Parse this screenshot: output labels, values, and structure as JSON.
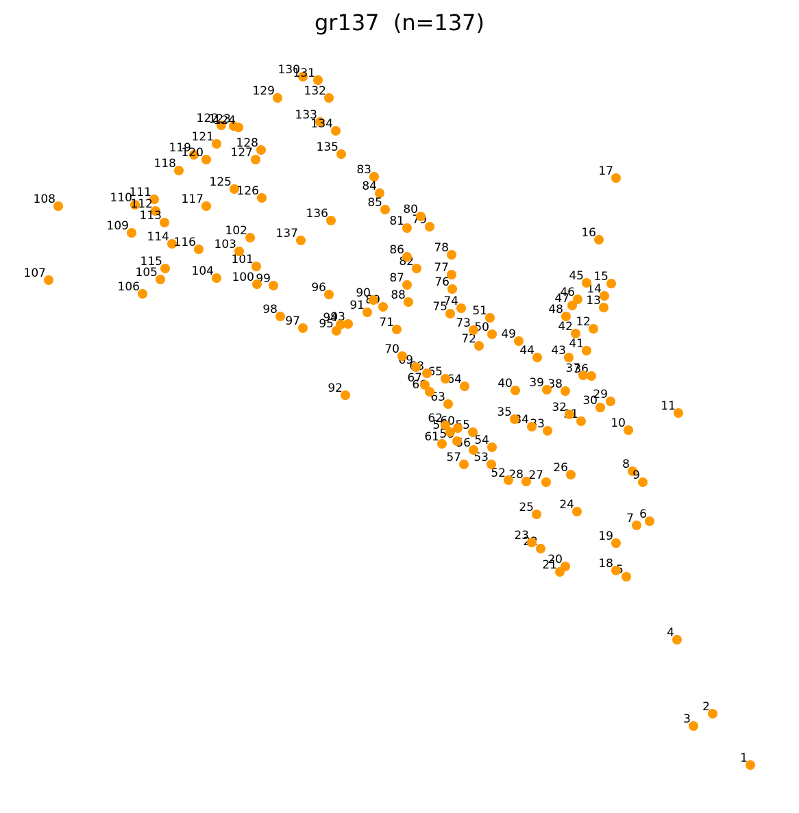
{
  "title": "gr137  (n=137)",
  "chart_data": {
    "type": "scatter",
    "title": "gr137  (n=137)",
    "xlabel": "",
    "ylabel": "",
    "grid": false,
    "axes_visible": false,
    "xlim": [
      0,
      1166
    ],
    "ylim": [
      0,
      1187
    ],
    "y_inverted": true,
    "point_color": "#ff9900",
    "points": [
      {
        "id": "1",
        "x": 1095,
        "y": 1117
      },
      {
        "id": "2",
        "x": 1040,
        "y": 1042
      },
      {
        "id": "3",
        "x": 1012,
        "y": 1060
      },
      {
        "id": "4",
        "x": 988,
        "y": 934
      },
      {
        "id": "5",
        "x": 914,
        "y": 842
      },
      {
        "id": "6",
        "x": 948,
        "y": 761
      },
      {
        "id": "7",
        "x": 929,
        "y": 767
      },
      {
        "id": "8",
        "x": 923,
        "y": 688
      },
      {
        "id": "9",
        "x": 938,
        "y": 704
      },
      {
        "id": "10",
        "x": 917,
        "y": 628
      },
      {
        "id": "11",
        "x": 990,
        "y": 603
      },
      {
        "id": "12",
        "x": 866,
        "y": 480
      },
      {
        "id": "13",
        "x": 881,
        "y": 449
      },
      {
        "id": "14",
        "x": 882,
        "y": 432
      },
      {
        "id": "15",
        "x": 892,
        "y": 414
      },
      {
        "id": "16",
        "x": 874,
        "y": 350
      },
      {
        "id": "17",
        "x": 899,
        "y": 260
      },
      {
        "id": "18",
        "x": 899,
        "y": 833
      },
      {
        "id": "19",
        "x": 899,
        "y": 793
      },
      {
        "id": "20",
        "x": 825,
        "y": 827
      },
      {
        "id": "21",
        "x": 817,
        "y": 835
      },
      {
        "id": "22",
        "x": 789,
        "y": 801
      },
      {
        "id": "23",
        "x": 776,
        "y": 792
      },
      {
        "id": "24",
        "x": 842,
        "y": 747
      },
      {
        "id": "25",
        "x": 783,
        "y": 751
      },
      {
        "id": "26",
        "x": 833,
        "y": 693
      },
      {
        "id": "27",
        "x": 797,
        "y": 704
      },
      {
        "id": "28",
        "x": 768,
        "y": 703
      },
      {
        "id": "29",
        "x": 891,
        "y": 586
      },
      {
        "id": "30",
        "x": 876,
        "y": 595
      },
      {
        "id": "31",
        "x": 848,
        "y": 615
      },
      {
        "id": "32",
        "x": 831,
        "y": 605
      },
      {
        "id": "33",
        "x": 799,
        "y": 629
      },
      {
        "id": "34",
        "x": 776,
        "y": 623
      },
      {
        "id": "35",
        "x": 751,
        "y": 612
      },
      {
        "id": "36",
        "x": 863,
        "y": 549
      },
      {
        "id": "37",
        "x": 851,
        "y": 548
      },
      {
        "id": "38",
        "x": 825,
        "y": 571
      },
      {
        "id": "39",
        "x": 798,
        "y": 569
      },
      {
        "id": "40",
        "x": 752,
        "y": 570
      },
      {
        "id": "41",
        "x": 856,
        "y": 512
      },
      {
        "id": "42",
        "x": 840,
        "y": 487
      },
      {
        "id": "43",
        "x": 830,
        "y": 522
      },
      {
        "id": "44",
        "x": 784,
        "y": 522
      },
      {
        "id": "45",
        "x": 856,
        "y": 413
      },
      {
        "id": "46",
        "x": 843,
        "y": 437
      },
      {
        "id": "47",
        "x": 835,
        "y": 446
      },
      {
        "id": "48",
        "x": 826,
        "y": 462
      },
      {
        "id": "49",
        "x": 757,
        "y": 498
      },
      {
        "id": "50",
        "x": 718,
        "y": 488
      },
      {
        "id": "51",
        "x": 715,
        "y": 464
      },
      {
        "id": "52",
        "x": 742,
        "y": 701
      },
      {
        "id": "53",
        "x": 717,
        "y": 678
      },
      {
        "id": "54",
        "x": 718,
        "y": 653
      },
      {
        "id": "55",
        "x": 690,
        "y": 631
      },
      {
        "id": "56",
        "x": 691,
        "y": 657
      },
      {
        "id": "57",
        "x": 677,
        "y": 678
      },
      {
        "id": "58",
        "x": 667,
        "y": 644
      },
      {
        "id": "59",
        "x": 657,
        "y": 631
      },
      {
        "id": "60",
        "x": 668,
        "y": 625
      },
      {
        "id": "61",
        "x": 645,
        "y": 648
      },
      {
        "id": "62",
        "x": 650,
        "y": 621
      },
      {
        "id": "63",
        "x": 654,
        "y": 590
      },
      {
        "id": "64",
        "x": 678,
        "y": 564
      },
      {
        "id": "65",
        "x": 650,
        "y": 553
      },
      {
        "id": "66",
        "x": 627,
        "y": 572
      },
      {
        "id": "67",
        "x": 620,
        "y": 562
      },
      {
        "id": "68",
        "x": 623,
        "y": 545
      },
      {
        "id": "69",
        "x": 607,
        "y": 536
      },
      {
        "id": "70",
        "x": 587,
        "y": 520
      },
      {
        "id": "71",
        "x": 579,
        "y": 481
      },
      {
        "id": "72",
        "x": 699,
        "y": 505
      },
      {
        "id": "73",
        "x": 691,
        "y": 482
      },
      {
        "id": "74",
        "x": 673,
        "y": 450
      },
      {
        "id": "75",
        "x": 657,
        "y": 458
      },
      {
        "id": "76",
        "x": 660,
        "y": 422
      },
      {
        "id": "77",
        "x": 659,
        "y": 401
      },
      {
        "id": "78",
        "x": 659,
        "y": 372
      },
      {
        "id": "79",
        "x": 627,
        "y": 331
      },
      {
        "id": "80",
        "x": 614,
        "y": 316
      },
      {
        "id": "81",
        "x": 594,
        "y": 333
      },
      {
        "id": "82",
        "x": 608,
        "y": 392
      },
      {
        "id": "83",
        "x": 546,
        "y": 258
      },
      {
        "id": "84",
        "x": 554,
        "y": 282
      },
      {
        "id": "85",
        "x": 562,
        "y": 306
      },
      {
        "id": "86",
        "x": 594,
        "y": 375
      },
      {
        "id": "87",
        "x": 594,
        "y": 416
      },
      {
        "id": "88",
        "x": 596,
        "y": 441
      },
      {
        "id": "89",
        "x": 559,
        "y": 448
      },
      {
        "id": "90",
        "x": 545,
        "y": 438
      },
      {
        "id": "91",
        "x": 536,
        "y": 456
      },
      {
        "id": "92",
        "x": 504,
        "y": 577
      },
      {
        "id": "93",
        "x": 508,
        "y": 473
      },
      {
        "id": "94",
        "x": 497,
        "y": 474
      },
      {
        "id": "95",
        "x": 491,
        "y": 483
      },
      {
        "id": "96",
        "x": 480,
        "y": 430
      },
      {
        "id": "97",
        "x": 442,
        "y": 479
      },
      {
        "id": "98",
        "x": 409,
        "y": 462
      },
      {
        "id": "99",
        "x": 399,
        "y": 417
      },
      {
        "id": "100",
        "x": 375,
        "y": 415
      },
      {
        "id": "101",
        "x": 374,
        "y": 389
      },
      {
        "id": "102",
        "x": 365,
        "y": 347
      },
      {
        "id": "103",
        "x": 349,
        "y": 367
      },
      {
        "id": "104",
        "x": 316,
        "y": 406
      },
      {
        "id": "105",
        "x": 234,
        "y": 408
      },
      {
        "id": "106",
        "x": 208,
        "y": 429
      },
      {
        "id": "107",
        "x": 71,
        "y": 409
      },
      {
        "id": "108",
        "x": 85,
        "y": 301
      },
      {
        "id": "109",
        "x": 192,
        "y": 340
      },
      {
        "id": "110",
        "x": 197,
        "y": 299
      },
      {
        "id": "111",
        "x": 225,
        "y": 291
      },
      {
        "id": "112",
        "x": 227,
        "y": 308
      },
      {
        "id": "113",
        "x": 240,
        "y": 325
      },
      {
        "id": "114",
        "x": 251,
        "y": 356
      },
      {
        "id": "115",
        "x": 241,
        "y": 392
      },
      {
        "id": "116",
        "x": 290,
        "y": 364
      },
      {
        "id": "117",
        "x": 301,
        "y": 301
      },
      {
        "id": "118",
        "x": 261,
        "y": 249
      },
      {
        "id": "119",
        "x": 283,
        "y": 226
      },
      {
        "id": "120",
        "x": 301,
        "y": 233
      },
      {
        "id": "121",
        "x": 316,
        "y": 210
      },
      {
        "id": "122",
        "x": 323,
        "y": 183
      },
      {
        "id": "123",
        "x": 341,
        "y": 184
      },
      {
        "id": "124",
        "x": 348,
        "y": 186
      },
      {
        "id": "125",
        "x": 342,
        "y": 276
      },
      {
        "id": "126",
        "x": 382,
        "y": 289
      },
      {
        "id": "127",
        "x": 373,
        "y": 233
      },
      {
        "id": "128",
        "x": 381,
        "y": 219
      },
      {
        "id": "129",
        "x": 405,
        "y": 143
      },
      {
        "id": "130",
        "x": 442,
        "y": 112
      },
      {
        "id": "131",
        "x": 464,
        "y": 117
      },
      {
        "id": "132",
        "x": 480,
        "y": 143
      },
      {
        "id": "133",
        "x": 467,
        "y": 178
      },
      {
        "id": "134",
        "x": 490,
        "y": 191
      },
      {
        "id": "135",
        "x": 498,
        "y": 225
      },
      {
        "id": "136",
        "x": 483,
        "y": 322
      },
      {
        "id": "137",
        "x": 439,
        "y": 351
      }
    ]
  }
}
